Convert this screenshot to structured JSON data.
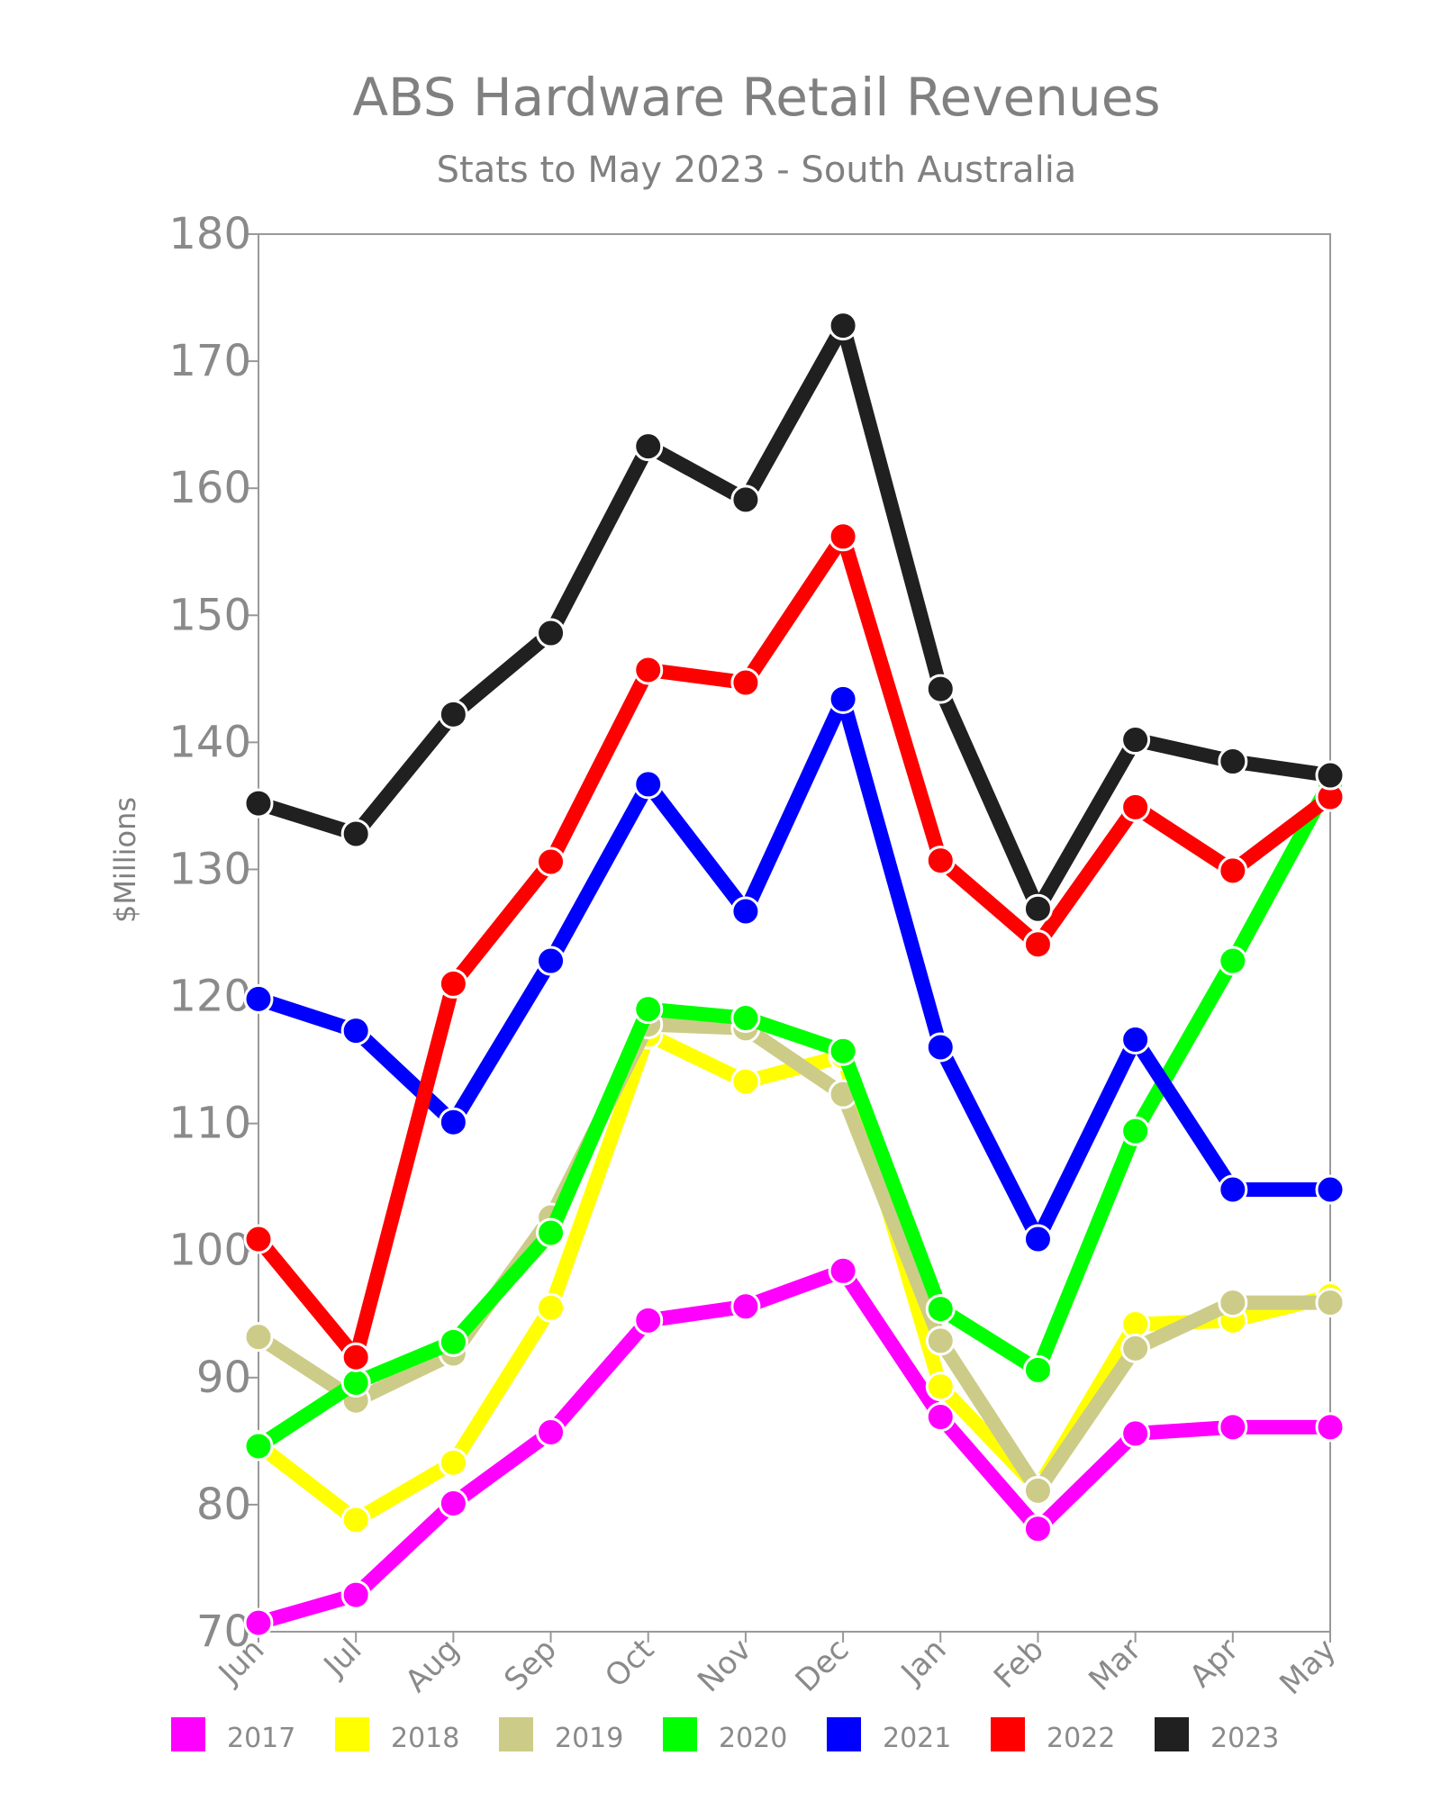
{
  "chart_data": {
    "type": "line",
    "title": "ABS Hardware Retail Revenues",
    "subtitle": "Stats to May 2023 - South Australia",
    "ylabel": "$Millions",
    "xlabel": "",
    "ylim": [
      70,
      180
    ],
    "yticks": [
      "70",
      "80",
      "90",
      "100",
      "110",
      "120",
      "130",
      "140",
      "150",
      "160",
      "170",
      "180"
    ],
    "categories": [
      "Jun",
      "Jul",
      "Aug",
      "Sep",
      "Oct",
      "Nov",
      "Dec",
      "Jan",
      "Feb",
      "Mar",
      "Apr",
      "May"
    ],
    "grid": false,
    "legend_position": "bottom",
    "series": [
      {
        "name": "2017",
        "color": "#ff00ff",
        "values": [
          70.7,
          72.9,
          80.1,
          85.7,
          94.5,
          95.6,
          98.4,
          86.9,
          78.1,
          85.6,
          86.1,
          86.1
        ]
      },
      {
        "name": "2018",
        "color": "#ffff00",
        "values": [
          84.7,
          78.8,
          83.3,
          95.5,
          117.0,
          113.3,
          115.3,
          89.3,
          81.3,
          94.2,
          94.5,
          96.4
        ]
      },
      {
        "name": "2019",
        "color": "#cccc88",
        "values": [
          93.2,
          88.2,
          91.9,
          102.6,
          117.8,
          117.5,
          112.3,
          92.9,
          81.1,
          92.3,
          95.9,
          95.9
        ]
      },
      {
        "name": "2020",
        "color": "#00ff00",
        "values": [
          84.6,
          89.6,
          92.8,
          101.4,
          119.0,
          118.3,
          115.7,
          95.4,
          90.6,
          109.4,
          122.8,
          136.9
        ]
      },
      {
        "name": "2021",
        "color": "#0000ff",
        "values": [
          119.8,
          117.3,
          110.1,
          122.8,
          136.7,
          126.7,
          143.4,
          116.0,
          100.9,
          116.6,
          104.8,
          104.8
        ]
      },
      {
        "name": "2022",
        "color": "#ff0000",
        "values": [
          100.9,
          91.6,
          121.0,
          130.6,
          145.7,
          144.7,
          156.2,
          130.7,
          124.1,
          134.9,
          129.9,
          135.7
        ]
      },
      {
        "name": "2023",
        "color": "#202020",
        "values": [
          135.2,
          132.8,
          142.2,
          148.6,
          163.3,
          159.1,
          172.8,
          144.2,
          126.9,
          140.2,
          138.5,
          137.4
        ]
      }
    ]
  }
}
